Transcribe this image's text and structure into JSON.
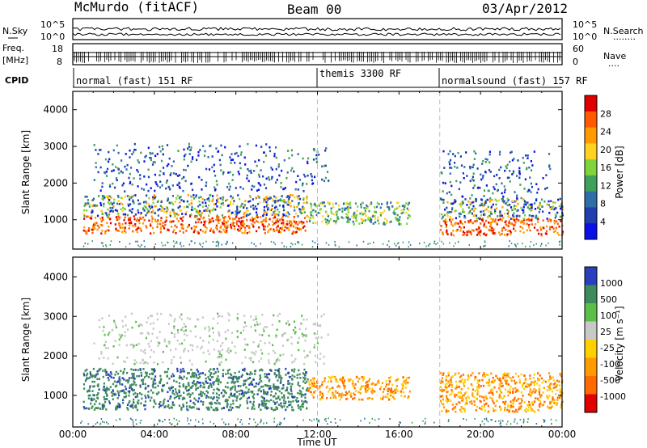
{
  "header": {
    "station": "McMurdo (fitACF)",
    "beam": "Beam 00",
    "date": "03/Apr/2012"
  },
  "noise_panel": {
    "left_label": "N.Sky",
    "right_label": "N.Search",
    "left_ticks": [
      "10^5",
      "10^0"
    ],
    "right_ticks": [
      "10^5",
      "10^0"
    ],
    "right_legend_line": "........"
  },
  "freq_panel": {
    "left_label_line1": "Freq.",
    "left_label_line2": "[MHz]",
    "left_ticks": [
      "18",
      "8"
    ],
    "right_label": "Nave",
    "right_ticks": [
      "60",
      "0"
    ],
    "right_legend_line": "...."
  },
  "cpid": {
    "label": "CPID",
    "segments": [
      {
        "start_hour": 0,
        "text": "normal (fast) 151 RF"
      },
      {
        "start_hour": 12,
        "text": "themis 3300 RF"
      },
      {
        "start_hour": 18,
        "text": "normalsound (fast) 157 RF"
      }
    ]
  },
  "x_axis": {
    "label": "Time UT",
    "ticks": [
      "00:00",
      "04:00",
      "08:00",
      "12:00",
      "16:00",
      "20:00",
      "00:00"
    ],
    "range_hours": [
      0,
      24
    ]
  },
  "chart_data": [
    {
      "type": "heatmap",
      "name": "power",
      "ylabel": "Slant Range [km]",
      "ylim": [
        200,
        4500
      ],
      "yticks": [
        "1000",
        "2000",
        "3000",
        "4000"
      ],
      "colorbar_label": "Power [dB]",
      "colorbar_ticks": [
        "28",
        "24",
        "20",
        "16",
        "12",
        "8",
        "4"
      ],
      "colorbar_colors": [
        "#e00000",
        "#ff5a00",
        "#ff9a00",
        "#ffd21f",
        "#7fd43a",
        "#3ea05a",
        "#2e6ea8",
        "#1f3fb0",
        "#0a10e8"
      ],
      "scatter_bands": [
        {
          "t_start": 0.5,
          "t_end": 11.5,
          "r_low": 650,
          "r_high": 1700,
          "level": "high"
        },
        {
          "t_start": 11.5,
          "t_end": 16.5,
          "r_low": 900,
          "r_high": 1500,
          "level": "medium"
        },
        {
          "t_start": 18.0,
          "t_end": 24.0,
          "r_low": 600,
          "r_high": 1600,
          "level": "high"
        },
        {
          "t_start": 1.0,
          "t_end": 12.5,
          "r_low": 1800,
          "r_high": 3100,
          "level": "low"
        },
        {
          "t_start": 18.0,
          "t_end": 23.5,
          "r_low": 1600,
          "r_high": 2900,
          "level": "low"
        }
      ]
    },
    {
      "type": "heatmap",
      "name": "velocity",
      "ylabel": "Slant Range [km]",
      "ylim": [
        200,
        4500
      ],
      "yticks": [
        "1000",
        "2000",
        "3000",
        "4000"
      ],
      "colorbar_label": "Velocity [m s⁻¹]",
      "colorbar_ticks": [
        "1000",
        "500",
        "100",
        "25",
        "-25",
        "-100",
        "-500",
        "-1000"
      ],
      "colorbar_colors": [
        "#2a3fc0",
        "#3d8a5a",
        "#5ac04a",
        "#c8c8c8",
        "#ffd000",
        "#ff9a00",
        "#ff6a00",
        "#e00000"
      ],
      "scatter_bands": [
        {
          "t_start": 0.5,
          "t_end": 11.5,
          "r_low": 650,
          "r_high": 1700,
          "velocity": "positive"
        },
        {
          "t_start": 11.5,
          "t_end": 16.5,
          "r_low": 900,
          "r_high": 1500,
          "velocity": "negative"
        },
        {
          "t_start": 18.0,
          "t_end": 24.0,
          "r_low": 600,
          "r_high": 1600,
          "velocity": "negative"
        },
        {
          "t_start": 1.0,
          "t_end": 12.5,
          "r_low": 1800,
          "r_high": 3100,
          "velocity": "near-zero"
        }
      ]
    }
  ]
}
